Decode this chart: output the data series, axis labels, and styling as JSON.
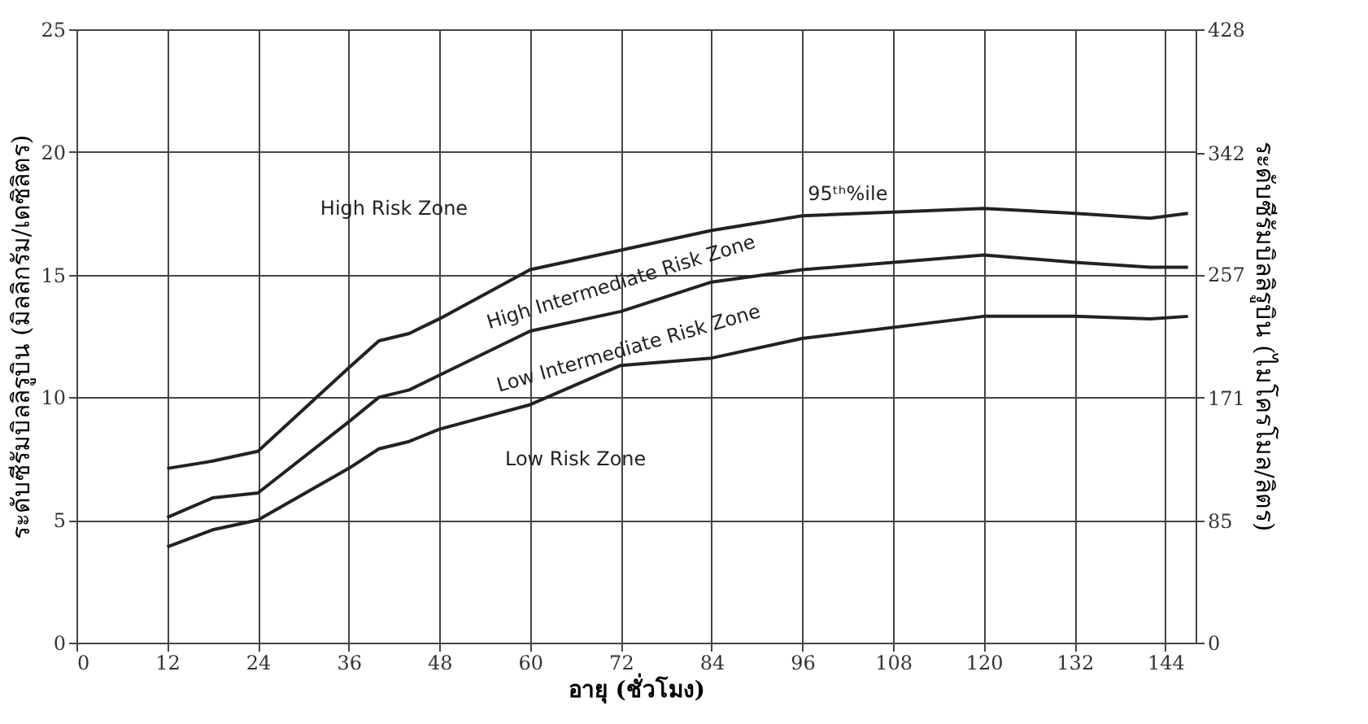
{
  "chart_data": {
    "type": "line",
    "xlabel": "อายุ (ชั่วโมง)",
    "ylabel": "ระดับซีรัมบิลลิรูบิน (มิลลิกรัม/เดซิลิตร)",
    "y2label": "ระดับซีรัมบิลลิรูบิน (ไมโครโมล/ลิตร)",
    "x": [
      12,
      18,
      24,
      36,
      40,
      44,
      48,
      60,
      72,
      84,
      96,
      120,
      132,
      142,
      147
    ],
    "series": [
      {
        "color": "#222222",
        "values": [
          7.1,
          7.4,
          7.8,
          11.2,
          12.3,
          12.6,
          13.2,
          15.2,
          16.0,
          16.8,
          17.4,
          17.7,
          17.5,
          17.3,
          17.5
        ]
      },
      {
        "color": "#222222",
        "values": [
          5.1,
          5.9,
          6.1,
          9.0,
          10.0,
          10.3,
          10.9,
          12.7,
          13.5,
          14.7,
          15.2,
          15.8,
          15.5,
          15.3,
          15.3
        ]
      },
      {
        "color": "#222222",
        "values": [
          3.9,
          4.6,
          5.0,
          7.1,
          7.9,
          8.2,
          8.7,
          9.7,
          11.3,
          11.6,
          12.4,
          13.3,
          13.3,
          13.2,
          13.3
        ]
      }
    ],
    "xlim": [
      0,
      148
    ],
    "xticks": [
      0,
      12,
      24,
      36,
      48,
      60,
      72,
      84,
      96,
      108,
      120,
      132,
      144
    ],
    "ylim": [
      0,
      25
    ],
    "yticks": [
      0,
      5,
      10,
      15,
      20,
      25
    ],
    "y2lim": [
      0,
      428
    ],
    "y2ticks": [
      0,
      85,
      171,
      257,
      342,
      428
    ],
    "grid": true,
    "legend": false,
    "marker": "none",
    "line_style": "solid",
    "annotations": [
      "High Risk Zone",
      "High Intermediate Risk Zone",
      "Low Intermediate Risk Zone",
      "Low Risk Zone",
      "95ᵗʰ%ile"
    ]
  }
}
